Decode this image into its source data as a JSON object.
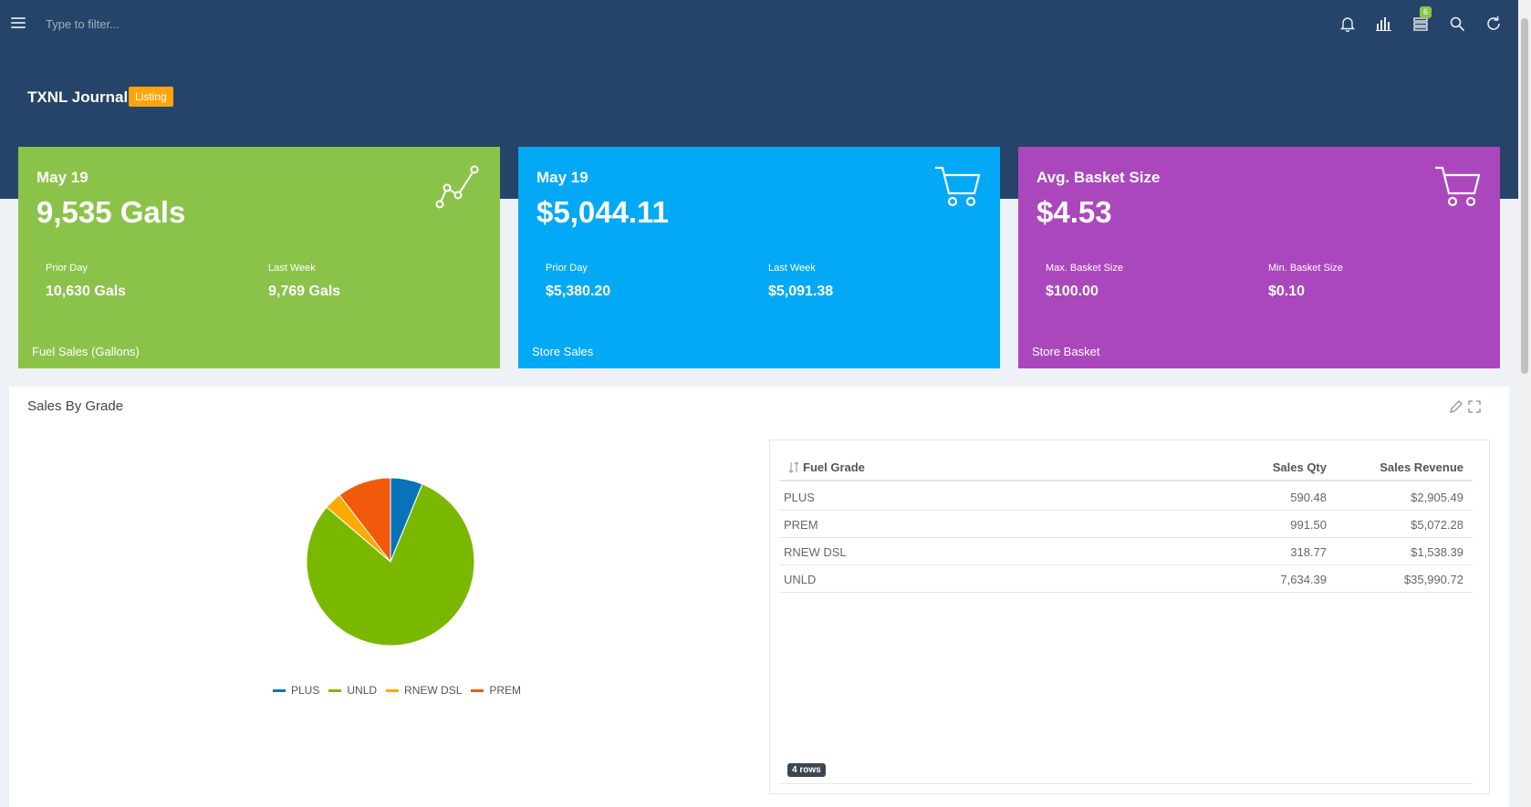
{
  "topbar": {
    "filter_placeholder": "Type to filter...",
    "icons": [
      "menu-icon",
      "bell-icon",
      "bar-chart-icon",
      "list-icon",
      "search-icon",
      "refresh-icon"
    ],
    "list_badge": "6"
  },
  "page": {
    "title": "TXNL Journal",
    "badge": "Listing"
  },
  "cards": [
    {
      "color": "#8bc34a",
      "subtitle": "May 19",
      "main": "9,535 Gals",
      "icon": "line-chart-icon",
      "metric1_label": "Prior Day",
      "metric1_value": "10,630 Gals",
      "metric2_label": "Last Week",
      "metric2_value": "9,769 Gals",
      "footer": "Fuel Sales (Gallons)"
    },
    {
      "color": "#03a9f4",
      "subtitle": "May 19",
      "main": "$5,044.11",
      "icon": "shopping-cart-icon",
      "metric1_label": "Prior Day",
      "metric1_value": "$5,380.20",
      "metric2_label": "Last Week",
      "metric2_value": "$5,091.38",
      "footer": "Store Sales"
    },
    {
      "color": "#ab47bc",
      "subtitle": "Avg. Basket Size",
      "main": "$4.53",
      "icon": "shopping-cart-icon",
      "metric1_label": "Max. Basket Size",
      "metric1_value": "$100.00",
      "metric2_label": "Min. Basket Size",
      "metric2_value": "$0.10",
      "footer": "Store Basket"
    }
  ],
  "panel": {
    "title": "Sales By Grade",
    "tools": [
      "edit-icon",
      "fullscreen-icon"
    ]
  },
  "chart_data": {
    "type": "pie",
    "categories": [
      "PLUS",
      "UNLD",
      "RNEW DSL",
      "PREM"
    ],
    "values": [
      590.48,
      7634.39,
      318.77,
      991.5
    ],
    "colors": [
      "#0a73b8",
      "#7ab800",
      "#fbaa00",
      "#f05a0a"
    ],
    "legend_position": "bottom"
  },
  "table": {
    "headers": [
      "Fuel Grade",
      "Sales Qty",
      "Sales Revenue"
    ],
    "rows": [
      [
        "PLUS",
        "590.48",
        "$2,905.49"
      ],
      [
        "PREM",
        "991.50",
        "$5,072.28"
      ],
      [
        "RNEW DSL",
        "318.77",
        "$1,538.39"
      ],
      [
        "UNLD",
        "7,634.39",
        "$35,990.72"
      ]
    ],
    "row_count": "4 rows"
  }
}
